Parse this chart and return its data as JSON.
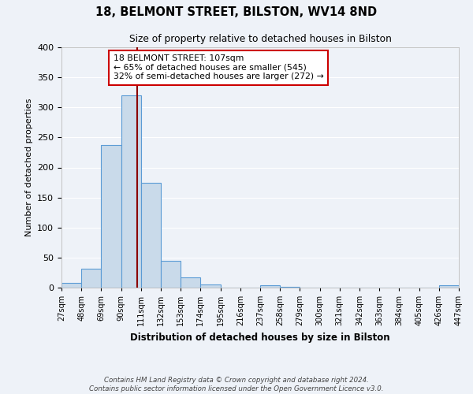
{
  "title": "18, BELMONT STREET, BILSTON, WV14 8ND",
  "subtitle": "Size of property relative to detached houses in Bilston",
  "xlabel": "Distribution of detached houses by size in Bilston",
  "ylabel": "Number of detached properties",
  "bar_color": "#c9daea",
  "bar_edge_color": "#5b9bd5",
  "background_color": "#eef2f8",
  "grid_color": "#ffffff",
  "bin_edges": [
    27,
    48,
    69,
    90,
    111,
    132,
    153,
    174,
    195,
    216,
    237,
    258,
    279,
    300,
    321,
    342,
    363,
    384,
    405,
    426,
    447
  ],
  "bar_heights": [
    8,
    32,
    238,
    320,
    175,
    45,
    17,
    5,
    0,
    0,
    4,
    1,
    0,
    0,
    0,
    0,
    0,
    0,
    0,
    4
  ],
  "property_value": 107,
  "vline_color": "#8b0000",
  "annotation_line1": "18 BELMONT STREET: 107sqm",
  "annotation_line2": "← 65% of detached houses are smaller (545)",
  "annotation_line3": "32% of semi-detached houses are larger (272) →",
  "annotation_box_color": "#ffffff",
  "annotation_box_edge_color": "#cc0000",
  "ylim": [
    0,
    400
  ],
  "yticks": [
    0,
    50,
    100,
    150,
    200,
    250,
    300,
    350,
    400
  ],
  "tick_labels": [
    "27sqm",
    "48sqm",
    "69sqm",
    "90sqm",
    "111sqm",
    "132sqm",
    "153sqm",
    "174sqm",
    "195sqm",
    "216sqm",
    "237sqm",
    "258sqm",
    "279sqm",
    "300sqm",
    "321sqm",
    "342sqm",
    "363sqm",
    "384sqm",
    "405sqm",
    "426sqm",
    "447sqm"
  ],
  "footer_line1": "Contains HM Land Registry data © Crown copyright and database right 2024.",
  "footer_line2": "Contains public sector information licensed under the Open Government Licence v3.0."
}
